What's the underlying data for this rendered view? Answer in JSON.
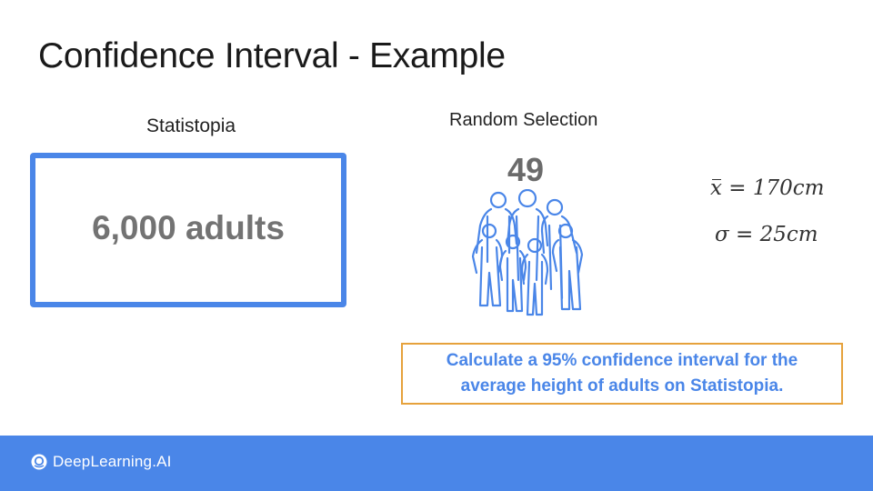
{
  "slide": {
    "title": "Confidence Interval - Example",
    "population": {
      "label": "Statistopia",
      "size_text": "6,000 adults"
    },
    "sample": {
      "label": "Random Selection",
      "count": "49"
    },
    "stats": {
      "mean_symbol": "x",
      "mean_value": " = 170cm",
      "sd_symbol": "σ",
      "sd_value": " = 25cm"
    },
    "task": {
      "text_line1": "Calculate a 95% confidence interval for the",
      "text_line2": "average height of adults on Statistopia."
    },
    "colors": {
      "accent": "#4a86e8",
      "box_border": "#e6a23c"
    }
  },
  "footer": {
    "brand": "DeepLearning.AI"
  }
}
